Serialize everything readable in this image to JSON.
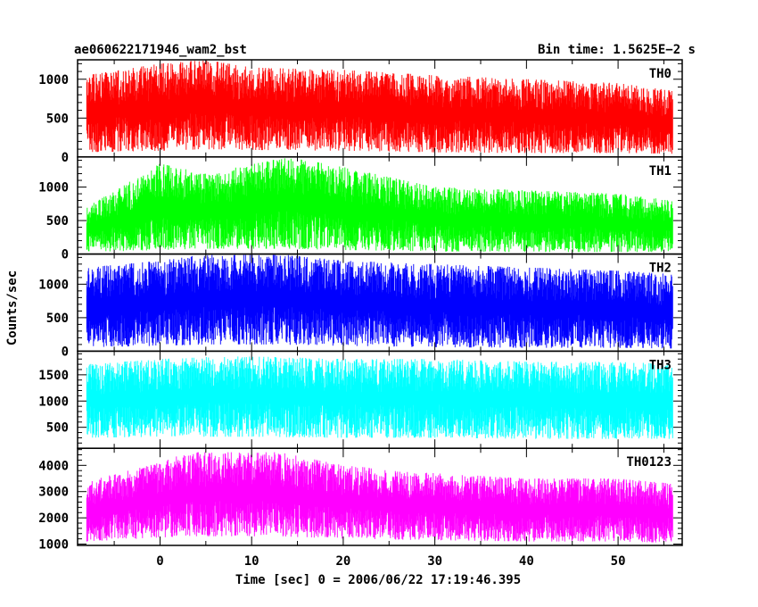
{
  "chart_data": {
    "type": "line",
    "title": "ae060622171946_wam2_bst",
    "subtitle": "Bin time: 1.5625E−2 s",
    "xlabel": "Time [sec] 0 = 2006/06/22 17:19:46.395",
    "ylabel": "Counts/sec",
    "xlim": [
      -9,
      57
    ],
    "xticks": [
      0,
      10,
      20,
      30,
      40,
      50
    ],
    "x_range": [
      -8,
      56
    ],
    "grid": false,
    "panels": [
      {
        "name": "TH0",
        "color": "#ff0000",
        "ylim": [
          0,
          1250
        ],
        "yticks": [
          0,
          500,
          1000
        ],
        "envelope": [
          {
            "x": -8,
            "low": 60,
            "high": 1050
          },
          {
            "x": 0,
            "low": 80,
            "high": 1200
          },
          {
            "x": 5,
            "low": 100,
            "high": 1250
          },
          {
            "x": 10,
            "low": 90,
            "high": 1150
          },
          {
            "x": 20,
            "low": 80,
            "high": 1120
          },
          {
            "x": 30,
            "low": 60,
            "high": 1050
          },
          {
            "x": 40,
            "low": 50,
            "high": 1000
          },
          {
            "x": 50,
            "low": 50,
            "high": 950
          },
          {
            "x": 56,
            "low": 40,
            "high": 850
          }
        ]
      },
      {
        "name": "TH1",
        "color": "#00ff00",
        "ylim": [
          0,
          1450
        ],
        "yticks": [
          0,
          500,
          1000
        ],
        "envelope": [
          {
            "x": -8,
            "low": 30,
            "high": 700
          },
          {
            "x": 0,
            "low": 60,
            "high": 1350
          },
          {
            "x": 5,
            "low": 80,
            "high": 1200
          },
          {
            "x": 14,
            "low": 80,
            "high": 1450
          },
          {
            "x": 20,
            "low": 60,
            "high": 1300
          },
          {
            "x": 30,
            "low": 40,
            "high": 1000
          },
          {
            "x": 40,
            "low": 30,
            "high": 950
          },
          {
            "x": 50,
            "low": 30,
            "high": 900
          },
          {
            "x": 56,
            "low": 30,
            "high": 800
          }
        ]
      },
      {
        "name": "TH2",
        "color": "#0000ff",
        "ylim": [
          0,
          1450
        ],
        "yticks": [
          0,
          500,
          1000
        ],
        "envelope": [
          {
            "x": -8,
            "low": 60,
            "high": 1250
          },
          {
            "x": 0,
            "low": 80,
            "high": 1350
          },
          {
            "x": 5,
            "low": 100,
            "high": 1450
          },
          {
            "x": 13,
            "low": 100,
            "high": 1450
          },
          {
            "x": 20,
            "low": 80,
            "high": 1350
          },
          {
            "x": 30,
            "low": 60,
            "high": 1300
          },
          {
            "x": 40,
            "low": 50,
            "high": 1250
          },
          {
            "x": 50,
            "low": 50,
            "high": 1200
          },
          {
            "x": 56,
            "low": 40,
            "high": 1150
          }
        ]
      },
      {
        "name": "TH3",
        "color": "#00ffff",
        "ylim": [
          100,
          1950
        ],
        "yticks": [
          500,
          1000,
          1500
        ],
        "envelope": [
          {
            "x": -8,
            "low": 300,
            "high": 1700
          },
          {
            "x": 0,
            "low": 320,
            "high": 1800
          },
          {
            "x": 5,
            "low": 320,
            "high": 1850
          },
          {
            "x": 10,
            "low": 320,
            "high": 1850
          },
          {
            "x": 20,
            "low": 300,
            "high": 1800
          },
          {
            "x": 30,
            "low": 300,
            "high": 1800
          },
          {
            "x": 40,
            "low": 280,
            "high": 1750
          },
          {
            "x": 50,
            "low": 280,
            "high": 1750
          },
          {
            "x": 56,
            "low": 280,
            "high": 1700
          }
        ]
      },
      {
        "name": "TH0123",
        "color": "#ff00ff",
        "ylim": [
          950,
          4650
        ],
        "yticks": [
          1000,
          2000,
          3000,
          4000
        ],
        "envelope": [
          {
            "x": -8,
            "low": 1100,
            "high": 3400
          },
          {
            "x": 0,
            "low": 1250,
            "high": 4100
          },
          {
            "x": 3,
            "low": 1300,
            "high": 4500
          },
          {
            "x": 13,
            "low": 1300,
            "high": 4500
          },
          {
            "x": 20,
            "low": 1200,
            "high": 4000
          },
          {
            "x": 30,
            "low": 1150,
            "high": 3700
          },
          {
            "x": 40,
            "low": 1100,
            "high": 3500
          },
          {
            "x": 50,
            "low": 1100,
            "high": 3500
          },
          {
            "x": 56,
            "low": 1050,
            "high": 3300
          }
        ]
      }
    ]
  }
}
